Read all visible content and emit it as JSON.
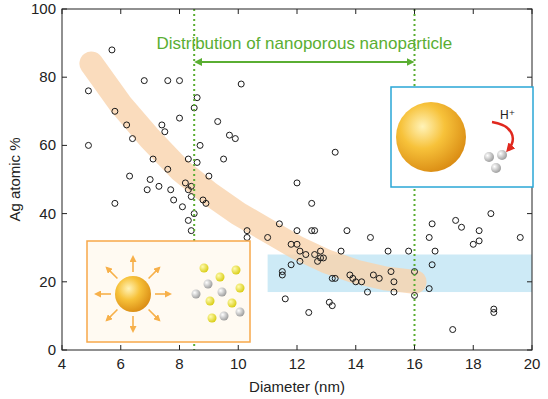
{
  "chart_data": {
    "type": "scatter",
    "x_label": "Diameter (nm)",
    "y_label": "Ag atomic %",
    "marker": "open-circle",
    "color": "#1a1a1a",
    "x": [
      4.9,
      4.9,
      5.7,
      5.8,
      5.8,
      6.2,
      6.3,
      6.4,
      6.8,
      6.9,
      7.0,
      7.1,
      7.3,
      7.4,
      7.5,
      7.6,
      7.6,
      7.7,
      7.8,
      8.0,
      8.0,
      8.1,
      8.2,
      8.3,
      8.4,
      8.4,
      8.3,
      8.4,
      8.3,
      8.5,
      8.5,
      8.6,
      8.6,
      8.7,
      8.8,
      8.9,
      9.0,
      9.3,
      9.5,
      9.7,
      9.9,
      10.1,
      10.3,
      10.3,
      11.0,
      11.4,
      11.5,
      11.5,
      11.6,
      11.8,
      11.8,
      12.0,
      12.0,
      12.0,
      12.1,
      12.1,
      12.3,
      12.4,
      12.5,
      12.5,
      12.6,
      12.6,
      12.7,
      12.8,
      12.8,
      12.9,
      13.1,
      13.2,
      13.2,
      13.3,
      13.3,
      13.5,
      13.7,
      13.8,
      13.9,
      14.0,
      14.2,
      14.4,
      14.5,
      14.6,
      14.8,
      15.1,
      15.2,
      15.3,
      15.3,
      15.8,
      16.0,
      16.0,
      16.5,
      16.6,
      16.6,
      16.5,
      16.7,
      17.3,
      17.4,
      17.6,
      18.0,
      18.2,
      18.2,
      18.6,
      18.7,
      18.7,
      19.6
    ],
    "values": [
      76,
      60,
      88,
      70,
      43,
      66,
      51,
      62,
      79,
      47,
      50,
      56,
      48,
      66,
      64,
      53,
      79,
      47,
      44,
      68,
      79,
      42,
      49,
      47,
      48,
      45,
      38,
      35,
      56,
      40,
      71,
      55,
      74,
      60,
      44,
      43,
      51,
      67,
      56,
      63,
      62,
      78,
      35,
      33,
      33,
      37,
      23,
      22,
      15,
      25,
      31,
      31,
      49,
      35,
      29,
      26,
      28,
      11,
      35,
      43,
      35,
      28,
      26,
      27,
      29,
      27,
      14,
      13,
      21,
      58,
      21,
      29,
      35,
      22,
      21,
      20,
      20,
      17,
      33,
      22,
      21,
      29,
      23,
      17,
      20,
      29,
      16,
      23,
      33,
      37,
      25,
      18,
      29,
      6,
      38,
      36,
      31,
      35,
      32,
      40,
      12,
      11,
      33
    ],
    "xlim": [
      4,
      20
    ],
    "xticks": [
      4,
      6,
      8,
      10,
      12,
      14,
      16,
      18,
      20
    ],
    "ylim": [
      0,
      100
    ],
    "yticks": [
      0,
      20,
      40,
      60,
      80,
      100
    ],
    "annotations": [
      {
        "text": "Distribution of nanoporous nanoparticle",
        "x": [
          8.5,
          16
        ],
        "color": "#5aae32"
      },
      {
        "text": "H⁺",
        "color": "#222222"
      }
    ],
    "trend_band": {
      "x": [
        5,
        6,
        7,
        8,
        9,
        10,
        11,
        12,
        13,
        14,
        15,
        16
      ],
      "y": [
        84,
        72,
        62,
        53,
        46,
        40,
        35,
        30,
        26,
        23,
        21,
        20
      ],
      "color": "#f9d3ac"
    },
    "highlight_band": {
      "xlim": [
        11,
        20
      ],
      "ylim": [
        17,
        28
      ],
      "color": "#c4e6f4"
    }
  }
}
